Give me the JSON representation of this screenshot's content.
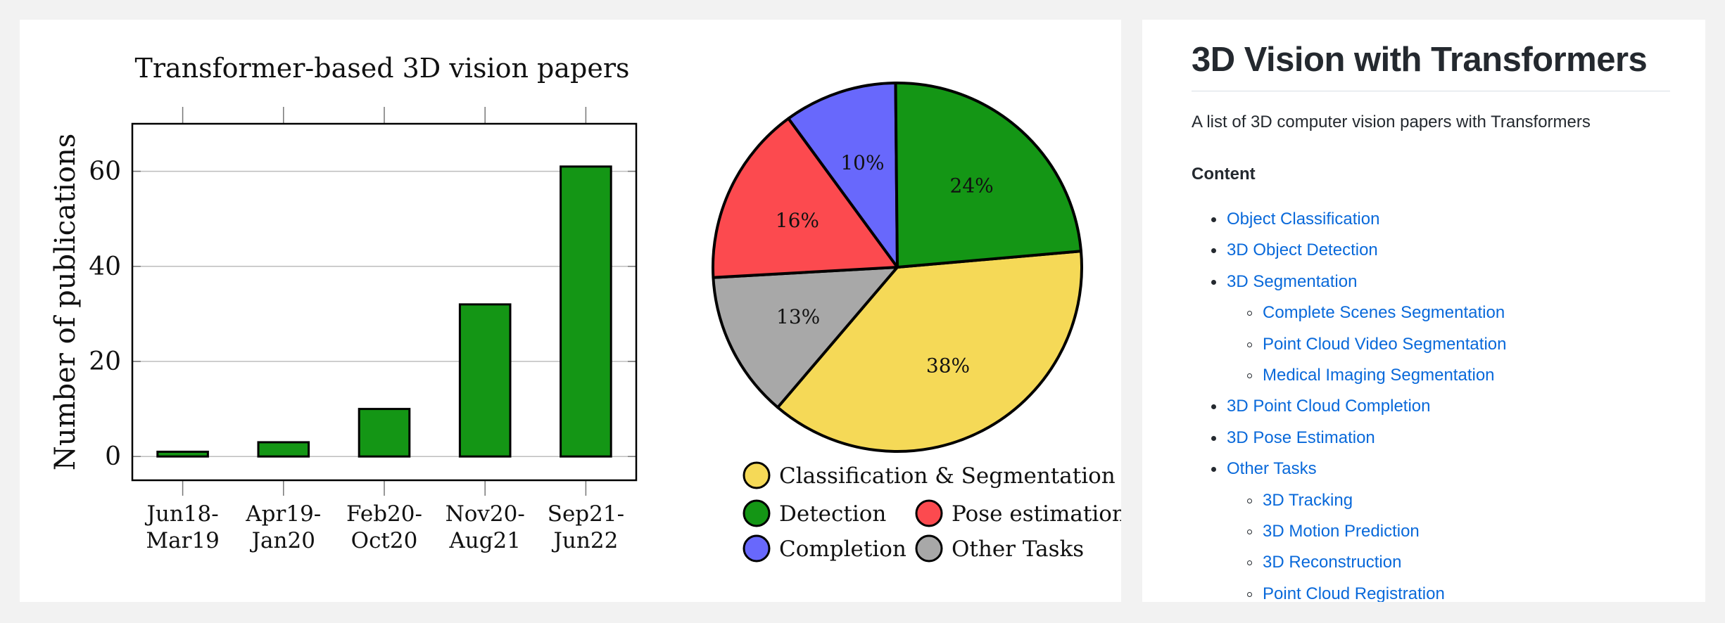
{
  "chart_data": [
    {
      "type": "bar",
      "title": "Transformer-based 3D vision papers",
      "xlabel": "",
      "ylabel": "Number of publications",
      "categories": [
        "Jun18-\nMar19",
        "Apr19-\nJan20",
        "Feb20-\nOct20",
        "Nov20-\nAug21",
        "Sep21-\nJun22"
      ],
      "values": [
        1,
        3,
        10,
        32,
        61
      ],
      "ylim": [
        -5,
        70
      ],
      "yticks": [
        0,
        20,
        40,
        60
      ],
      "grid": true,
      "bar_color": "#149615"
    },
    {
      "type": "pie",
      "slices": [
        {
          "label": "Classification & Segmentation",
          "value": 38,
          "display": "38%",
          "color": "#f5d957"
        },
        {
          "label": "Other Tasks",
          "value": 13,
          "display": "13%",
          "color": "#a8a8a8"
        },
        {
          "label": "Pose estimation",
          "value": 16,
          "display": "16%",
          "color": "#fc4a4f"
        },
        {
          "label": "Completion",
          "value": 10,
          "display": "10%",
          "color": "#6868fc"
        },
        {
          "label": "Detection",
          "value": 24,
          "display": "24%",
          "color": "#149615"
        }
      ],
      "legend": [
        {
          "label": "Classification & Segmentation",
          "color": "#f5d957"
        },
        {
          "label": "Detection",
          "color": "#149615"
        },
        {
          "label": "Pose estimation",
          "color": "#fc4a4f"
        },
        {
          "label": "Completion",
          "color": "#6868fc"
        },
        {
          "label": "Other Tasks",
          "color": "#a8a8a8"
        }
      ],
      "legend_placement": "bottom"
    }
  ],
  "readme": {
    "title": "3D Vision with Transformers",
    "description": "A list of 3D computer vision papers with Transformers",
    "content_heading": "Content",
    "link_color": "#0969da",
    "toc": [
      {
        "label": "Object Classification",
        "level": 0
      },
      {
        "label": "3D Object Detection",
        "level": 0
      },
      {
        "label": "3D Segmentation",
        "level": 0
      },
      {
        "label": "Complete Scenes Segmentation",
        "level": 1
      },
      {
        "label": "Point Cloud Video Segmentation",
        "level": 1
      },
      {
        "label": "Medical Imaging Segmentation",
        "level": 1
      },
      {
        "label": "3D Point Cloud Completion",
        "level": 0
      },
      {
        "label": "3D Pose Estimation",
        "level": 0
      },
      {
        "label": "Other Tasks",
        "level": 0
      },
      {
        "label": "3D Tracking",
        "level": 1
      },
      {
        "label": "3D Motion Prediction",
        "level": 1
      },
      {
        "label": "3D Reconstruction",
        "level": 1
      },
      {
        "label": "Point Cloud Registration",
        "level": 1
      }
    ]
  }
}
